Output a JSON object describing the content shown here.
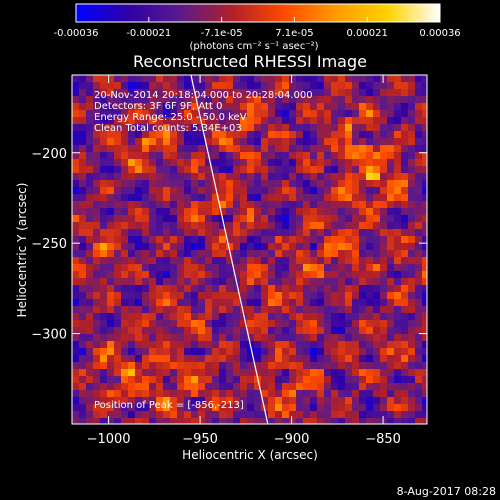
{
  "colorbar": {
    "tick_labels": [
      "-0.00036",
      "-0.00021",
      "-7.1e-05",
      "7.1e-05",
      "0.00021",
      "0.00036"
    ],
    "units_label": "(photons cm⁻² s⁻¹ asec⁻²)",
    "range": [
      -0.00036,
      0.00036
    ],
    "stops": [
      "#0000ff",
      "#3000a8",
      "#5a1a8c",
      "#b0202a",
      "#ff4a00",
      "#ff9a00",
      "#ffd200",
      "#ffffff"
    ]
  },
  "chart_data": {
    "type": "heatmap",
    "title": "Reconstructed RHESSI Image",
    "xlabel": "Heliocentric X (arcsec)",
    "ylabel": "Heliocentric Y (arcsec)",
    "xlim": [
      -1020,
      -826
    ],
    "ylim": [
      -350,
      -157
    ],
    "x_ticks": [
      -1000,
      -950,
      -900,
      -850
    ],
    "y_ticks": [
      -200,
      -250,
      -300
    ],
    "x_tick_labels": [
      "−1000",
      "−950",
      "−900",
      "−850"
    ],
    "y_tick_labels": [
      "−200",
      "−250",
      "−300"
    ],
    "limb_line": [
      [
        -955,
        -157
      ],
      [
        -913,
        -350
      ]
    ],
    "peak": [
      -856,
      -213
    ]
  },
  "annotations": {
    "time_range": "20-Nov-2014 20:18:04.000 to 20:28:04.000",
    "detectors": "Detectors: 3F 6F 9F, Att 0",
    "energy_range": "Energy Range: 25.0 - 50.0 keV",
    "method": "Clean     Total counts: 5.34E+03",
    "peak_position": "Position of Peak = [-856,-213]"
  },
  "timestamp": "8-Aug-2017 08:28"
}
